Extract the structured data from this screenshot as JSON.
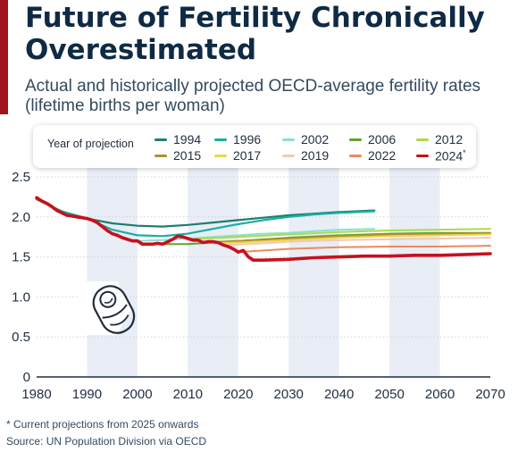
{
  "header": {
    "title": "Future of Fertility Chronically Overestimated",
    "subtitle": "Actual and historically projected OECD-average fertility rates (lifetime births per woman)"
  },
  "legend": {
    "title": "Year of projection",
    "asterisk": "*"
  },
  "footer": {
    "footnote": "* Current projections from 2025 onwards",
    "source": "Source: UN Population Division via OECD"
  },
  "icon": {
    "name": "baby-icon"
  },
  "chart_data": {
    "type": "line",
    "xlim": [
      1980,
      2070
    ],
    "ylim": [
      0,
      2.5
    ],
    "x_ticks": [
      "1980",
      "1990",
      "2000",
      "2010",
      "2020",
      "2030",
      "2040",
      "2050",
      "2060",
      "2070"
    ],
    "y_ticks": [
      "0",
      "0.5",
      "1.0",
      "1.5",
      "2.0",
      "2.5"
    ],
    "grid": "alternating vertical bands",
    "legend_position": "top",
    "series": [
      {
        "name": "1994",
        "color": "#1e7d6e",
        "width": 2.2,
        "points": [
          [
            1980,
            2.22
          ],
          [
            1985,
            2.07
          ],
          [
            1990,
            1.98
          ],
          [
            1995,
            1.92
          ],
          [
            2000,
            1.89
          ],
          [
            2005,
            1.88
          ],
          [
            2010,
            1.9
          ],
          [
            2015,
            1.93
          ],
          [
            2020,
            1.96
          ],
          [
            2025,
            1.99
          ],
          [
            2030,
            2.02
          ],
          [
            2035,
            2.04
          ],
          [
            2040,
            2.06
          ],
          [
            2047,
            2.08
          ]
        ]
      },
      {
        "name": "1996",
        "color": "#15b0a0",
        "width": 2.2,
        "points": [
          [
            1980,
            2.22
          ],
          [
            1985,
            2.07
          ],
          [
            1990,
            1.98
          ],
          [
            1995,
            1.84
          ],
          [
            2000,
            1.77
          ],
          [
            2005,
            1.76
          ],
          [
            2010,
            1.79
          ],
          [
            2015,
            1.85
          ],
          [
            2020,
            1.91
          ],
          [
            2025,
            1.96
          ],
          [
            2030,
            2.0
          ],
          [
            2035,
            2.03
          ],
          [
            2040,
            2.05
          ],
          [
            2047,
            2.07
          ]
        ]
      },
      {
        "name": "2002",
        "color": "#88e0d4",
        "width": 2,
        "points": [
          [
            2000,
            1.7
          ],
          [
            2005,
            1.71
          ],
          [
            2010,
            1.73
          ],
          [
            2015,
            1.75
          ],
          [
            2020,
            1.77
          ],
          [
            2025,
            1.79
          ],
          [
            2030,
            1.8
          ],
          [
            2035,
            1.82
          ],
          [
            2040,
            1.84
          ],
          [
            2047,
            1.85
          ]
        ]
      },
      {
        "name": "2006",
        "color": "#5ea52b",
        "width": 2,
        "points": [
          [
            2004,
            1.66
          ],
          [
            2010,
            1.66
          ],
          [
            2015,
            1.68
          ],
          [
            2020,
            1.7
          ],
          [
            2030,
            1.74
          ],
          [
            2040,
            1.77
          ],
          [
            2050,
            1.79
          ],
          [
            2060,
            1.8
          ],
          [
            2070,
            1.8
          ]
        ]
      },
      {
        "name": "2012",
        "color": "#a9dc4a",
        "width": 2,
        "points": [
          [
            2010,
            1.72
          ],
          [
            2020,
            1.75
          ],
          [
            2030,
            1.78
          ],
          [
            2040,
            1.81
          ],
          [
            2050,
            1.83
          ],
          [
            2060,
            1.84
          ],
          [
            2070,
            1.85
          ]
        ]
      },
      {
        "name": "2015",
        "color": "#b0902c",
        "width": 2,
        "points": [
          [
            2013,
            1.68
          ],
          [
            2020,
            1.7
          ],
          [
            2030,
            1.73
          ],
          [
            2040,
            1.76
          ],
          [
            2050,
            1.78
          ],
          [
            2060,
            1.79
          ],
          [
            2070,
            1.8
          ]
        ]
      },
      {
        "name": "2017",
        "color": "#ead64a",
        "width": 2,
        "points": [
          [
            2015,
            1.67
          ],
          [
            2020,
            1.68
          ],
          [
            2030,
            1.71
          ],
          [
            2040,
            1.74
          ],
          [
            2050,
            1.76
          ],
          [
            2060,
            1.77
          ],
          [
            2070,
            1.78
          ]
        ]
      },
      {
        "name": "2019",
        "color": "#f4c9b3",
        "width": 2,
        "points": [
          [
            2018,
            1.65
          ],
          [
            2025,
            1.67
          ],
          [
            2030,
            1.69
          ],
          [
            2040,
            1.71
          ],
          [
            2050,
            1.72
          ],
          [
            2060,
            1.73
          ],
          [
            2070,
            1.74
          ]
        ]
      },
      {
        "name": "2022",
        "color": "#ef8a5a",
        "width": 2,
        "points": [
          [
            2020,
            1.56
          ],
          [
            2025,
            1.58
          ],
          [
            2030,
            1.6
          ],
          [
            2040,
            1.62
          ],
          [
            2050,
            1.63
          ],
          [
            2060,
            1.63
          ],
          [
            2070,
            1.64
          ]
        ]
      },
      {
        "name": "2024",
        "color": "#c8101c",
        "width": 3.6,
        "sup": "*",
        "points": [
          [
            1980,
            2.24
          ],
          [
            1981,
            2.2
          ],
          [
            1982,
            2.17
          ],
          [
            1983,
            2.13
          ],
          [
            1984,
            2.08
          ],
          [
            1985,
            2.05
          ],
          [
            1986,
            2.02
          ],
          [
            1987,
            2.01
          ],
          [
            1988,
            2.0
          ],
          [
            1989,
            1.99
          ],
          [
            1990,
            1.98
          ],
          [
            1991,
            1.96
          ],
          [
            1992,
            1.93
          ],
          [
            1993,
            1.88
          ],
          [
            1994,
            1.83
          ],
          [
            1995,
            1.79
          ],
          [
            1996,
            1.77
          ],
          [
            1997,
            1.74
          ],
          [
            1998,
            1.72
          ],
          [
            1999,
            1.7
          ],
          [
            2000,
            1.7
          ],
          [
            2001,
            1.66
          ],
          [
            2002,
            1.66
          ],
          [
            2003,
            1.66
          ],
          [
            2004,
            1.67
          ],
          [
            2005,
            1.66
          ],
          [
            2006,
            1.69
          ],
          [
            2007,
            1.72
          ],
          [
            2008,
            1.76
          ],
          [
            2009,
            1.75
          ],
          [
            2010,
            1.73
          ],
          [
            2011,
            1.71
          ],
          [
            2012,
            1.71
          ],
          [
            2013,
            1.68
          ],
          [
            2014,
            1.69
          ],
          [
            2015,
            1.69
          ],
          [
            2016,
            1.68
          ],
          [
            2017,
            1.65
          ],
          [
            2018,
            1.63
          ],
          [
            2019,
            1.6
          ],
          [
            2020,
            1.56
          ],
          [
            2021,
            1.58
          ],
          [
            2022,
            1.5
          ],
          [
            2023,
            1.46
          ],
          [
            2025,
            1.46
          ],
          [
            2030,
            1.47
          ],
          [
            2035,
            1.49
          ],
          [
            2040,
            1.5
          ],
          [
            2045,
            1.51
          ],
          [
            2050,
            1.51
          ],
          [
            2055,
            1.52
          ],
          [
            2060,
            1.52
          ],
          [
            2065,
            1.53
          ],
          [
            2070,
            1.54
          ]
        ]
      }
    ]
  }
}
